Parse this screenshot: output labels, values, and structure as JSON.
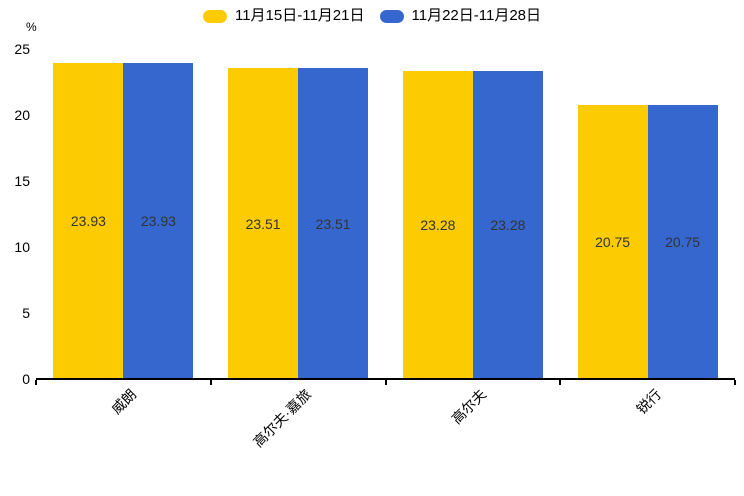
{
  "chart_data": {
    "type": "bar",
    "title": "",
    "ylabel": "%",
    "categories": [
      "威朗",
      "高尔夫·嘉旅",
      "高尔夫",
      "锐行"
    ],
    "series": [
      {
        "name": "11月15日-11月21日",
        "color": "#FDCB02",
        "values": [
          23.93,
          23.51,
          23.28,
          20.75
        ]
      },
      {
        "name": "11月22日-11月28日",
        "color": "#3667CE",
        "values": [
          23.93,
          23.51,
          23.28,
          20.75
        ]
      }
    ],
    "ylim": [
      0,
      25
    ],
    "yticks": [
      0,
      5,
      10,
      15,
      20,
      25
    ],
    "grid": false,
    "legend_position": "top",
    "value_labels_visible": true,
    "value_label_color": "#333333",
    "axis_color": "#000000",
    "background_color": "#ffffff"
  }
}
